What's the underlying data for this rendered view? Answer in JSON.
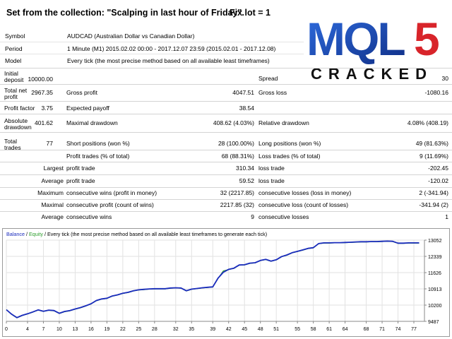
{
  "header": {
    "title": "Set from the collection: \"Scalping in last hour of Friday\".",
    "fix_lot": "Fix lot = 1"
  },
  "logo": {
    "text_top": "MQL",
    "text_digit": "5",
    "text_bottom": "CRACKED"
  },
  "meta": [
    {
      "label": "Symbol",
      "value": "AUDCAD (Australian Dollar vs Canadian Dollar)"
    },
    {
      "label": "Period",
      "value": "1 Minute (M1) 2015.02.02 00:00 - 2017.12.07 23:59 (2015.02.01 - 2017.12.08)"
    },
    {
      "label": "Model",
      "value": "Every tick (the most precise method based on all available least timeframes)"
    }
  ],
  "stats": {
    "initial_deposit": {
      "label": "Initial deposit",
      "value": "10000.00"
    },
    "spread": {
      "label": "Spread",
      "value": "30"
    },
    "total_net_profit": {
      "label": "Total net profit",
      "value": "2967.35"
    },
    "gross_profit": {
      "label": "Gross profit",
      "value": "4047.51"
    },
    "gross_loss": {
      "label": "Gross loss",
      "value": "-1080.16"
    },
    "profit_factor": {
      "label": "Profit factor",
      "value": "3.75"
    },
    "expected_payoff": {
      "label": "Expected payoff",
      "value": "38.54"
    },
    "absolute_drawdown": {
      "label": "Absolute drawdown",
      "value": "401.62"
    },
    "maximal_drawdown": {
      "label": "Maximal drawdown",
      "value": "408.62 (4.03%)"
    },
    "relative_drawdown": {
      "label": "Relative drawdown",
      "value": "4.08% (408.19)"
    },
    "total_trades": {
      "label": "Total trades",
      "value": "77"
    },
    "short_positions": {
      "label": "Short positions (won %)",
      "value": "28 (100.00%)"
    },
    "long_positions": {
      "label": "Long positions (won %)",
      "value": "49 (81.63%)"
    },
    "profit_trades": {
      "label": "Profit trades (% of total)",
      "value": "68 (88.31%)"
    },
    "loss_trades": {
      "label": "Loss trades (% of total)",
      "value": "9 (11.69%)"
    },
    "largest": {
      "label": "Largest",
      "profit_label": "profit trade",
      "profit_value": "310.34",
      "loss_label": "loss trade",
      "loss_value": "-202.45"
    },
    "average": {
      "label": "Average",
      "profit_label": "profit trade",
      "profit_value": "59.52",
      "loss_label": "loss trade",
      "loss_value": "-120.02"
    },
    "maximum": {
      "label": "Maximum",
      "wins_label": "consecutive wins (profit in money)",
      "wins_value": "32 (2217.85)",
      "losses_label": "consecutive losses (loss in money)",
      "losses_value": "2 (-341.94)"
    },
    "maximal": {
      "label": "Maximal",
      "wins_label": "consecutive profit (count of wins)",
      "wins_value": "2217.85 (32)",
      "losses_label": "consecutive loss (count of losses)",
      "losses_value": "-341.94 (2)"
    },
    "average_consec": {
      "label": "Average",
      "wins_label": "consecutive wins",
      "wins_value": "9",
      "losses_label": "consecutive losses",
      "losses_value": "1"
    }
  },
  "chart": {
    "legend_balance": "Balance",
    "legend_sep": " / ",
    "legend_equity": "Equity",
    "legend_rest": " / Every tick (the most precise method based on all available least timeframes to generate each tick)"
  },
  "chart_data": {
    "type": "line",
    "xlim": [
      0,
      79
    ],
    "ylim": [
      9487,
      13052
    ],
    "x_ticks": [
      0,
      4,
      7,
      10,
      13,
      16,
      19,
      22,
      25,
      28,
      32,
      35,
      39,
      42,
      45,
      48,
      51,
      55,
      58,
      61,
      64,
      68,
      71,
      74,
      77
    ],
    "y_ticks": [
      9487,
      10200,
      10913,
      11626,
      12339,
      13052
    ],
    "colors": {
      "balance": "#1a2bbd",
      "equity": "#2e9e2e"
    },
    "series": [
      {
        "name": "Balance",
        "x": [
          0,
          1,
          2,
          3,
          4,
          5,
          6,
          7,
          8,
          9,
          10,
          11,
          12,
          13,
          14,
          15,
          16,
          17,
          18,
          19,
          20,
          21,
          22,
          23,
          24,
          25,
          26,
          27,
          28,
          29,
          30,
          31,
          32,
          33,
          34,
          35,
          36,
          37,
          38,
          39,
          40,
          41,
          42,
          43,
          44,
          45,
          46,
          47,
          48,
          49,
          50,
          51,
          52,
          53,
          54,
          55,
          56,
          57,
          58,
          59,
          60,
          61,
          62,
          63,
          64,
          65,
          66,
          67,
          68,
          69,
          70,
          71,
          72,
          73,
          74,
          75,
          76,
          77,
          78
        ],
        "values": [
          10000,
          9800,
          9650,
          9750,
          9820,
          9900,
          9990,
          9930,
          9980,
          9960,
          9840,
          9920,
          9960,
          10030,
          10090,
          10170,
          10260,
          10400,
          10470,
          10500,
          10600,
          10650,
          10720,
          10760,
          10830,
          10870,
          10890,
          10910,
          10920,
          10920,
          10920,
          10950,
          10960,
          10950,
          10830,
          10900,
          10930,
          10960,
          10980,
          11000,
          11380,
          11640,
          11770,
          11820,
          11960,
          11970,
          12040,
          12060,
          12160,
          12210,
          12130,
          12190,
          12330,
          12400,
          12500,
          12560,
          12620,
          12690,
          12720,
          12900,
          12930,
          12930,
          12940,
          12940,
          12950,
          12960,
          12970,
          12980,
          12980,
          12990,
          12990,
          13000,
          13010,
          13000,
          12920,
          12920,
          12930,
          12930,
          12930
        ]
      },
      {
        "name": "Equity",
        "x": [
          0,
          1,
          2,
          3,
          4,
          5,
          6,
          7,
          8,
          9,
          10,
          11,
          12,
          13,
          14,
          15,
          16,
          17,
          18,
          19,
          20,
          21,
          22,
          23,
          24,
          25,
          26,
          27,
          28,
          29,
          30,
          31,
          32,
          33,
          34,
          35,
          36,
          37,
          38,
          39,
          40,
          41,
          42,
          43,
          44,
          45,
          46,
          47,
          48,
          49,
          50,
          51,
          52,
          53,
          54,
          55,
          56,
          57,
          58,
          59,
          60,
          61,
          62,
          63,
          64,
          65,
          66,
          67,
          68,
          69,
          70,
          71,
          72,
          73,
          74,
          75,
          76,
          77,
          78
        ],
        "values": [
          10000,
          9790,
          9640,
          9740,
          9810,
          9890,
          9980,
          9920,
          9970,
          9950,
          9830,
          9910,
          9950,
          10020,
          10080,
          10160,
          10250,
          10390,
          10460,
          10490,
          10590,
          10640,
          10710,
          10750,
          10820,
          10860,
          10880,
          10900,
          10910,
          10910,
          10910,
          10940,
          10950,
          10940,
          10820,
          10890,
          10920,
          10950,
          10970,
          10990,
          11370,
          11700,
          11760,
          11810,
          11950,
          11960,
          12030,
          12050,
          12150,
          12200,
          12120,
          12180,
          12320,
          12390,
          12490,
          12550,
          12610,
          12680,
          12710,
          12890,
          12920,
          12920,
          12930,
          12930,
          12940,
          12950,
          12960,
          12970,
          12970,
          12980,
          12980,
          12990,
          13000,
          12990,
          12910,
          12910,
          12920,
          12920,
          12920
        ]
      }
    ]
  }
}
